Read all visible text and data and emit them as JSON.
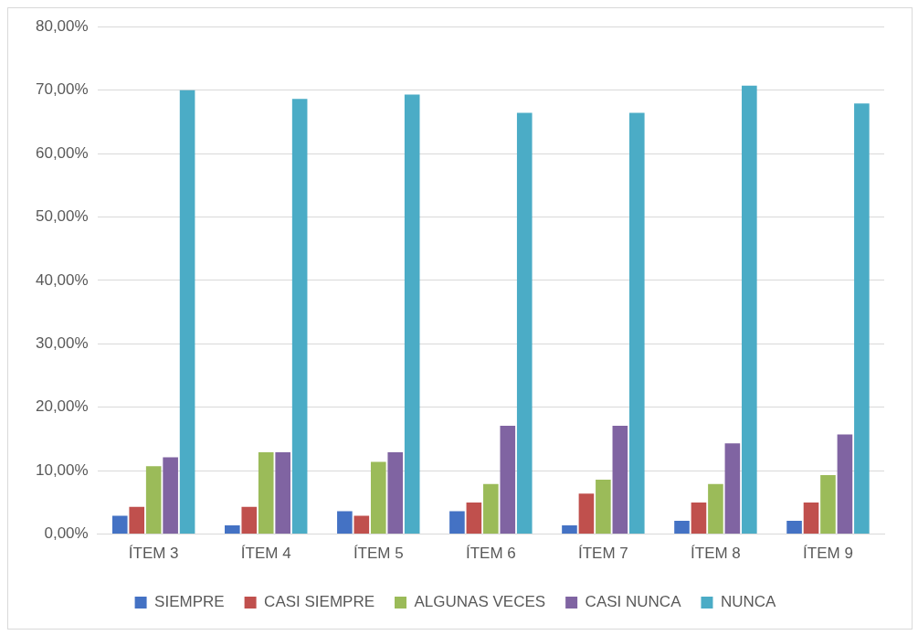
{
  "chart_data": {
    "type": "bar",
    "categories": [
      "ÍTEM 3",
      "ÍTEM 4",
      "ÍTEM 5",
      "ÍTEM 6",
      "ÍTEM 7",
      "ÍTEM 8",
      "ÍTEM 9"
    ],
    "series": [
      {
        "name": "SIEMPRE",
        "color": "#4472c4",
        "values": [
          2.9,
          1.4,
          3.6,
          3.6,
          1.4,
          2.1,
          2.1
        ]
      },
      {
        "name": "CASI SIEMPRE",
        "color": "#c0504d",
        "values": [
          4.3,
          4.3,
          2.9,
          5.0,
          6.4,
          5.0,
          5.0
        ]
      },
      {
        "name": "ALGUNAS VECES",
        "color": "#9bbb59",
        "values": [
          10.7,
          12.9,
          11.4,
          7.9,
          8.6,
          7.9,
          9.3
        ]
      },
      {
        "name": "CASI NUNCA",
        "color": "#8064a2",
        "values": [
          12.1,
          12.9,
          12.9,
          17.1,
          17.1,
          14.3,
          15.7
        ]
      },
      {
        "name": "NUNCA",
        "color": "#4bacc6",
        "values": [
          70.0,
          68.6,
          69.3,
          66.4,
          66.4,
          70.7,
          67.9
        ]
      }
    ],
    "ylim": [
      0,
      80
    ],
    "yticks": [
      {
        "value": 0,
        "label": "0,00%"
      },
      {
        "value": 10,
        "label": "10,00%"
      },
      {
        "value": 20,
        "label": "20,00%"
      },
      {
        "value": 30,
        "label": "30,00%"
      },
      {
        "value": 40,
        "label": "40,00%"
      },
      {
        "value": 50,
        "label": "50,00%"
      },
      {
        "value": 60,
        "label": "60,00%"
      },
      {
        "value": 70,
        "label": "70,00%"
      },
      {
        "value": 80,
        "label": "80,00%"
      }
    ],
    "grid": "y",
    "legend": "bottom"
  }
}
